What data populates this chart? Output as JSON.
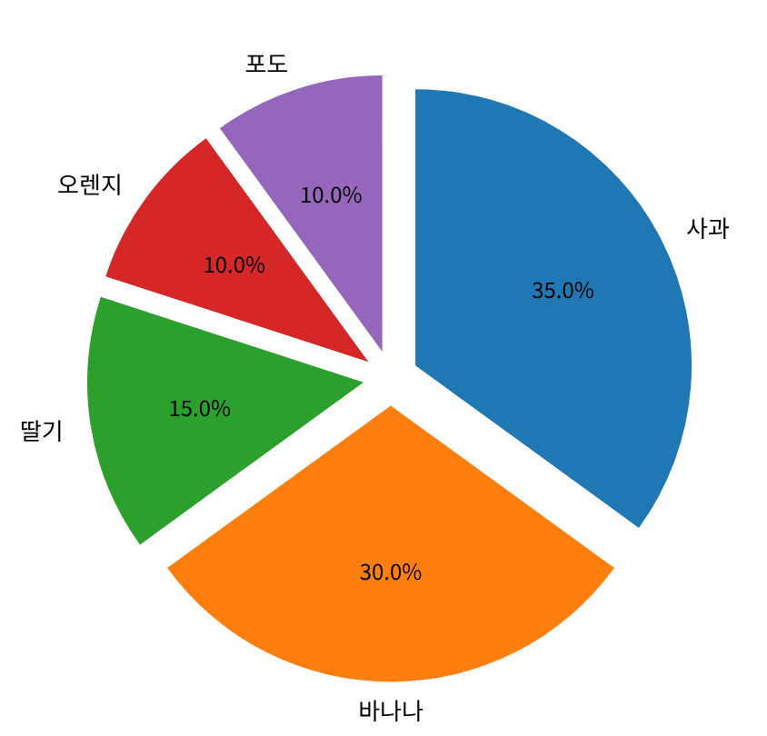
{
  "chart_data": {
    "type": "pie",
    "categories": [
      "사과",
      "바나나",
      "딸기",
      "오렌지",
      "포도"
    ],
    "values": [
      35,
      30,
      15,
      10,
      10
    ],
    "colors": [
      "#1f77b4",
      "#ff7f0e",
      "#2ca02c",
      "#d62728",
      "#9467bd"
    ],
    "value_labels": [
      "35.0%",
      "30.0%",
      "15.0%",
      "10.0%",
      "10.0%"
    ],
    "legend": false
  }
}
